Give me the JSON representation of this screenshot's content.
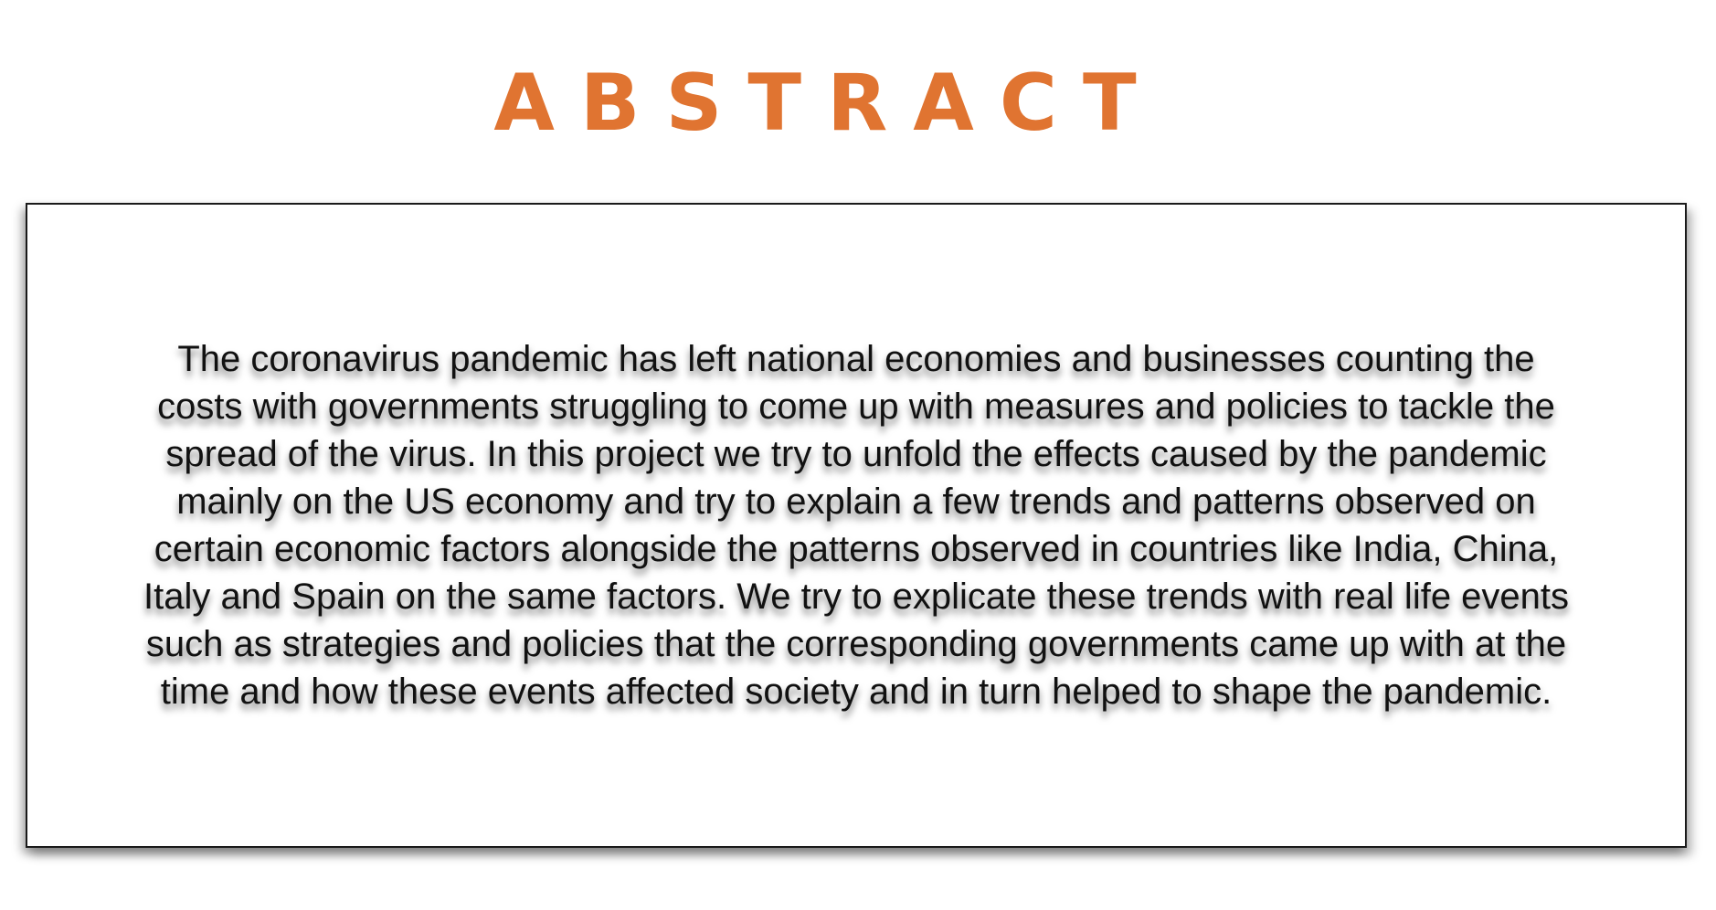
{
  "heading": "ABSTRACT",
  "colors": {
    "accent": "#e07431",
    "text": "#111111",
    "border": "#1a1a1a"
  },
  "abstract": {
    "lines": [
      "The coronavirus pandemic has left national economies and businesses counting the",
      "costs with governments struggling to come up with measures and policies to tackle the",
      "spread of the virus. In this project we try to unfold the effects caused by the pandemic",
      "mainly on the US economy and try to explain a few trends and patterns observed on",
      "certain economic factors alongside the patterns observed in countries like India, China,",
      "Italy and Spain on the same factors. We try to explicate these trends with real life events",
      "such as strategies and policies that the corresponding governments came up with at the",
      "time and how these events affected society and in turn helped to shape the pandemic."
    ]
  }
}
